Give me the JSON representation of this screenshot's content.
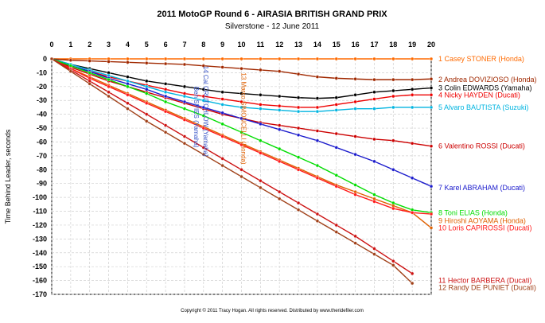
{
  "chart_data": {
    "type": "line",
    "title": "2011 MotoGP Round 6 - AIRASIA BRITISH GRAND PRIX",
    "subtitle": "Silverstone - 12 June 2011",
    "xlabel": "",
    "ylabel": "Time Behind Leader, seconds",
    "xlim": [
      0,
      20
    ],
    "ylim": [
      -170,
      0
    ],
    "x_ticks": [
      0,
      1,
      2,
      3,
      4,
      5,
      6,
      7,
      8,
      9,
      10,
      11,
      12,
      13,
      14,
      15,
      16,
      17,
      18,
      19,
      20
    ],
    "y_ticks": [
      0,
      -10,
      -20,
      -30,
      -40,
      -50,
      -60,
      -70,
      -80,
      -90,
      -100,
      -110,
      -120,
      -130,
      -140,
      -150,
      -160,
      -170
    ],
    "grid": true,
    "legend": "right-end labels",
    "series": [
      {
        "name": "1 Casey STONER (Honda)",
        "color": "#ff6a00",
        "label_y": 0,
        "x": [
          0,
          1,
          2,
          3,
          4,
          5,
          6,
          7,
          8,
          9,
          10,
          11,
          12,
          13,
          14,
          15,
          16,
          17,
          18,
          19,
          20
        ],
        "values": [
          0,
          0,
          0,
          0,
          0,
          0,
          0,
          0,
          0,
          0,
          0,
          0,
          0,
          0,
          0,
          0,
          0,
          0,
          0,
          0,
          0
        ]
      },
      {
        "name": "2 Andrea DOVIZIOSO (Honda)",
        "color": "#a02800",
        "label_y": -15,
        "x": [
          0,
          1,
          2,
          3,
          4,
          5,
          6,
          7,
          8,
          9,
          10,
          11,
          12,
          13,
          14,
          15,
          16,
          17,
          18,
          19,
          20
        ],
        "values": [
          0,
          -1,
          -1.5,
          -2,
          -2.5,
          -3,
          -3.5,
          -4,
          -5,
          -6,
          -7,
          -8,
          -9,
          -11,
          -13,
          -14,
          -14.5,
          -15,
          -15,
          -15,
          -14.5
        ]
      },
      {
        "name": "3 Colin EDWARDS (Yamaha)",
        "color": "#000000",
        "label_y": -21,
        "x": [
          0,
          1,
          2,
          3,
          4,
          5,
          6,
          7,
          8,
          9,
          10,
          11,
          12,
          13,
          14,
          15,
          16,
          17,
          18,
          19,
          20
        ],
        "values": [
          0,
          -4,
          -7,
          -10,
          -13,
          -16,
          -18,
          -20,
          -22,
          -24,
          -25,
          -26,
          -27,
          -28,
          -28.5,
          -28,
          -26,
          -24,
          -23,
          -22,
          -21
        ]
      },
      {
        "name": "4 Nicky HAYDEN (Ducati)",
        "color": "#ee0000",
        "label_y": -26,
        "x": [
          0,
          1,
          2,
          3,
          4,
          5,
          6,
          7,
          8,
          9,
          10,
          11,
          12,
          13,
          14,
          15,
          16,
          17,
          18,
          19,
          20
        ],
        "values": [
          0,
          -5,
          -9,
          -13,
          -16,
          -19,
          -22,
          -25,
          -27,
          -29,
          -31,
          -33,
          -34,
          -35,
          -35,
          -33,
          -31,
          -29,
          -27,
          -26,
          -26
        ]
      },
      {
        "name": "5 Alvaro BAUTISTA (Suzuki)",
        "color": "#00b4e0",
        "label_y": -35,
        "x": [
          0,
          1,
          2,
          3,
          4,
          5,
          6,
          7,
          8,
          9,
          10,
          11,
          12,
          13,
          14,
          15,
          16,
          17,
          18,
          19,
          20
        ],
        "values": [
          0,
          -4,
          -8,
          -12,
          -16,
          -20,
          -24,
          -27,
          -30,
          -33,
          -35,
          -36,
          -37,
          -38,
          -38,
          -37,
          -36,
          -36,
          -35,
          -35,
          -35
        ]
      },
      {
        "name": "6 Valentino ROSSI (Ducati)",
        "color": "#cc0000",
        "label_y": -63,
        "x": [
          0,
          1,
          2,
          3,
          4,
          5,
          6,
          7,
          8,
          9,
          10,
          11,
          12,
          13,
          14,
          15,
          16,
          17,
          18,
          19,
          20
        ],
        "values": [
          0,
          -6,
          -11,
          -16,
          -20,
          -24,
          -28,
          -32,
          -36,
          -40,
          -43,
          -46,
          -48,
          -50,
          -52,
          -54,
          -56,
          -58,
          -59,
          -61,
          -63
        ]
      },
      {
        "name": "7 Karel ABRAHAM (Ducati)",
        "color": "#1a1acc",
        "label_y": -93,
        "x": [
          0,
          1,
          2,
          3,
          4,
          5,
          6,
          7,
          8,
          9,
          10,
          11,
          12,
          13,
          14,
          15,
          16,
          17,
          18,
          19,
          20
        ],
        "values": [
          0,
          -5,
          -9,
          -14,
          -18,
          -22,
          -27,
          -31,
          -35,
          -39,
          -43,
          -47,
          -51,
          -55,
          -59,
          -64,
          -69,
          -74,
          -80,
          -86,
          -92
        ]
      },
      {
        "name": "8 Toni ELIAS (Honda)",
        "color": "#00dd00",
        "label_y": -111,
        "x": [
          0,
          1,
          2,
          3,
          4,
          5,
          6,
          7,
          8,
          9,
          10,
          11,
          12,
          13,
          14,
          15,
          16,
          17,
          18,
          19,
          20
        ],
        "values": [
          0,
          -5,
          -10,
          -15,
          -20,
          -25,
          -31,
          -36,
          -41,
          -47,
          -53,
          -59,
          -65,
          -71,
          -77,
          -84,
          -91,
          -98,
          -104,
          -109,
          -111
        ]
      },
      {
        "name": "9 Hiroshi AOYAMA (Honda)",
        "color": "#e06000",
        "label_y": -117,
        "x": [
          0,
          1,
          2,
          3,
          4,
          5,
          6,
          7,
          8,
          9,
          10,
          11,
          12,
          13,
          14,
          15,
          16,
          17,
          18,
          19,
          20
        ],
        "values": [
          0,
          -7,
          -13,
          -19,
          -25,
          -31,
          -37,
          -43,
          -49,
          -55,
          -61,
          -67,
          -73,
          -79,
          -85,
          -91,
          -96,
          -101,
          -106,
          -111,
          -122
        ]
      },
      {
        "name": "10 Loris CAPIROSSI (Ducati)",
        "color": "#ff1a1a",
        "label_y": -122,
        "x": [
          0,
          1,
          2,
          3,
          4,
          5,
          6,
          7,
          8,
          9,
          10,
          11,
          12,
          13,
          14,
          15,
          16,
          17,
          18,
          19,
          20
        ],
        "values": [
          0,
          -7,
          -14,
          -20,
          -26,
          -32,
          -38,
          -44,
          -50,
          -56,
          -62,
          -68,
          -74,
          -80,
          -86,
          -92,
          -98,
          -103,
          -108,
          -111,
          -112
        ]
      },
      {
        "name": "11 Hector BARBERA (Ducati)",
        "color": "#cc1111",
        "label_y": -160,
        "x": [
          0,
          1,
          2,
          3,
          4,
          5,
          6,
          7,
          8,
          9,
          10,
          11,
          12,
          13,
          14,
          15,
          16,
          17,
          18,
          19
        ],
        "values": [
          0,
          -8,
          -16,
          -24,
          -32,
          -40,
          -48,
          -56,
          -64,
          -72,
          -80,
          -88,
          -96,
          -104,
          -112,
          -120,
          -128,
          -137,
          -146,
          -155
        ]
      },
      {
        "name": "12 Randy DE PUNIET (Ducati)",
        "color": "#a04018",
        "label_y": -165,
        "x": [
          0,
          1,
          2,
          3,
          4,
          5,
          6,
          7,
          8,
          9,
          10,
          11,
          12,
          13,
          14,
          15,
          16,
          17,
          18,
          19
        ],
        "values": [
          0,
          -9,
          -18,
          -27,
          -36,
          -45,
          -53,
          -61,
          -69,
          -77,
          -85,
          -93,
          -101,
          -109,
          -117,
          -125,
          -133,
          -141,
          -149,
          -162
        ]
      }
    ],
    "annotations": [
      {
        "text": "13 Marco SIMONCELLI (Honda)",
        "color": "#e06000",
        "x": 10,
        "y": -10
      },
      {
        "text": "14 Cal CRUTCHLOW (Yamaha)",
        "color": "#3a56c8",
        "x": 8,
        "y": -5
      },
      {
        "text": "Ben SPIES (Yamaha)",
        "color": "#3a56c8",
        "x": 7.5,
        "y": -20
      }
    ]
  },
  "footer": "Copyright © 2011 Tracy Hogan. All rights reserved. Distributed by www.theridefiler.com"
}
